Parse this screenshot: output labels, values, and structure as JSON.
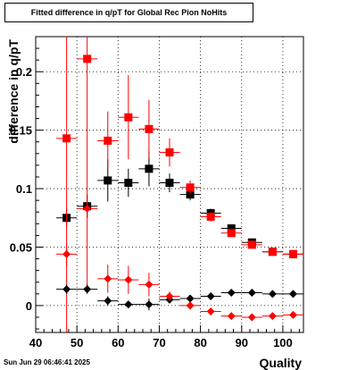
{
  "page": {
    "footer_date": "Sun Jun 29 06:46:41 2025"
  },
  "chart_data": {
    "type": "scatter",
    "title": "Fitted difference in q/pT for Global Rec Pion NoHits",
    "xlabel": "Quality",
    "ylabel": "difference in q/pT",
    "xlim": [
      40,
      105
    ],
    "ylim": [
      -0.023,
      0.23
    ],
    "x_ticks": [
      40,
      50,
      60,
      70,
      80,
      90,
      100
    ],
    "y_ticks": [
      0,
      0.05,
      0.1,
      0.15,
      0.2
    ],
    "y_tick_labels": [
      "0",
      "0.05",
      "0.1",
      "0.15",
      "0.2"
    ],
    "grid": true,
    "x_bin_halfwidth": 2.5,
    "series": [
      {
        "marker": "square",
        "color": "#000000",
        "x": [
          47.5,
          52.5,
          57.5,
          62.5,
          67.5,
          72.5,
          77.5,
          82.5,
          87.5,
          92.5,
          97.5,
          102.5
        ],
        "y": [
          0.075,
          0.085,
          0.107,
          0.105,
          0.117,
          0.105,
          0.095,
          0.079,
          0.066,
          0.054,
          0.046,
          0.044
        ],
        "err": [
          0.008,
          0.01,
          0.018,
          0.012,
          0.015,
          0.008,
          0.005,
          0.004,
          0.003,
          0.003,
          0.002,
          0.002
        ]
      },
      {
        "marker": "square",
        "color": "#ff0000",
        "x": [
          47.5,
          52.5,
          57.5,
          62.5,
          67.5,
          72.5,
          77.5,
          82.5,
          87.5,
          92.5,
          97.5,
          102.5
        ],
        "y": [
          0.143,
          0.211,
          0.141,
          0.161,
          0.151,
          0.131,
          0.101,
          0.076,
          0.062,
          0.052,
          0.046,
          0.044
        ],
        "err": [
          0.2,
          0.2,
          0.025,
          0.036,
          0.025,
          0.012,
          0.006,
          0.004,
          0.003,
          0.003,
          0.002,
          0.002
        ]
      },
      {
        "marker": "diamond",
        "color": "#000000",
        "x": [
          47.5,
          52.5,
          57.5,
          62.5,
          67.5,
          72.5,
          77.5,
          82.5,
          87.5,
          92.5,
          97.5,
          102.5
        ],
        "y": [
          0.014,
          0.014,
          0.004,
          0.001,
          0.001,
          0.005,
          0.006,
          0.008,
          0.011,
          0.011,
          0.01,
          0.01
        ],
        "err": [
          0.004,
          0.004,
          0.004,
          0.003,
          0.005,
          0.003,
          0.002,
          0.001,
          0.001,
          0.001,
          0.001,
          0.001
        ]
      },
      {
        "marker": "diamond",
        "color": "#ff0000",
        "x": [
          47.5,
          52.5,
          57.5,
          62.5,
          67.5,
          72.5,
          77.5,
          82.5,
          87.5,
          92.5,
          97.5,
          102.5
        ],
        "y": [
          0.044,
          0.083,
          0.023,
          0.022,
          0.018,
          0.008,
          0.0,
          -0.005,
          -0.009,
          -0.01,
          -0.009,
          -0.008
        ],
        "err": [
          0.01,
          0.008,
          0.012,
          0.012,
          0.01,
          0.004,
          0.003,
          0.002,
          0.002,
          0.001,
          0.001,
          0.001
        ]
      }
    ]
  }
}
